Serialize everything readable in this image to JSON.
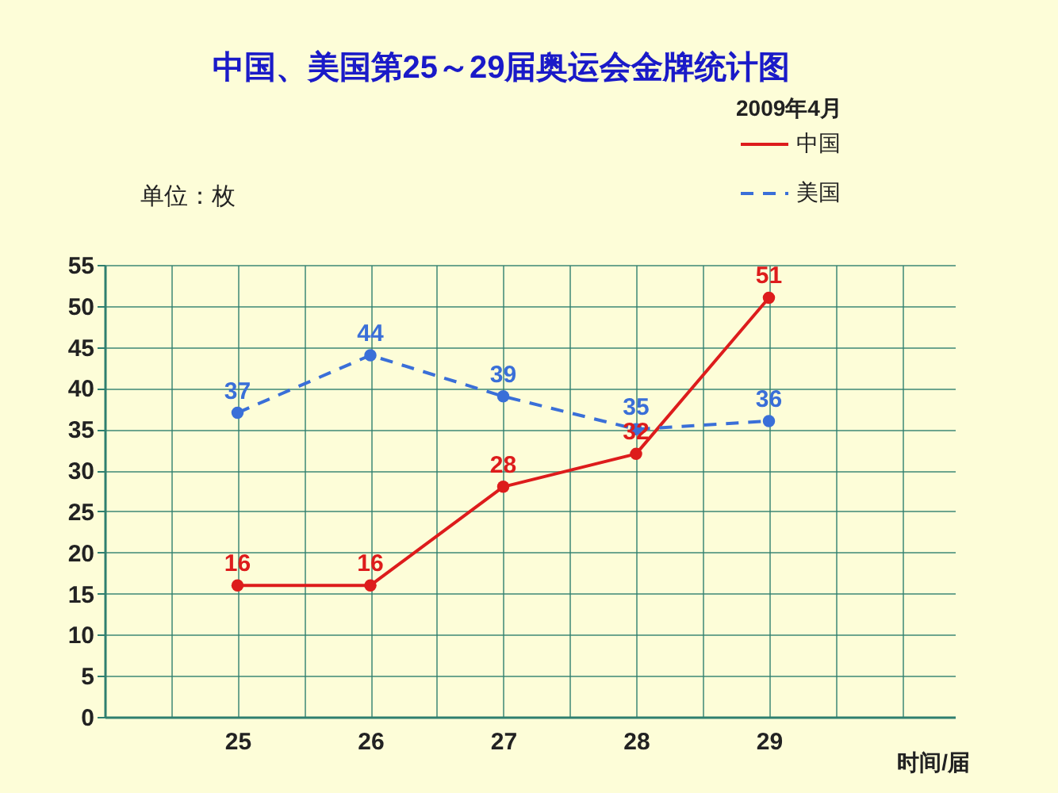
{
  "chart_data": {
    "type": "line",
    "title": "中国、美国第25～29届奥运会金牌统计图",
    "xlabel": "时间/届",
    "ylabel": "单位：枚",
    "annotations": [
      "2009年4月"
    ],
    "x": [
      25,
      26,
      27,
      28,
      29
    ],
    "xlim": [
      24,
      30.4
    ],
    "xticks": [
      {
        "value": 24.5,
        "label": null
      },
      25,
      {
        "value": 25.5,
        "label": null
      },
      26,
      {
        "value": 26.5,
        "label": null
      },
      27,
      {
        "value": 27.5,
        "label": null
      },
      28,
      {
        "value": 28.5,
        "label": null
      },
      29,
      {
        "value": 29.5,
        "label": null
      },
      {
        "value": 30,
        "label": null
      }
    ],
    "ylim": [
      0,
      55
    ],
    "yticks": [
      0,
      5,
      10,
      15,
      20,
      25,
      30,
      35,
      40,
      45,
      50,
      55
    ],
    "series": [
      {
        "name": "中国",
        "color": "#dd1c1c",
        "line_style": "solid",
        "values": [
          16,
          16,
          28,
          32,
          51
        ]
      },
      {
        "name": "美国",
        "color": "#3a6fd8",
        "line_style": "dashed",
        "values": [
          37,
          44,
          39,
          35,
          36
        ]
      }
    ],
    "data_labels": true,
    "marker": "circle",
    "grid": true,
    "legend": "top right"
  }
}
